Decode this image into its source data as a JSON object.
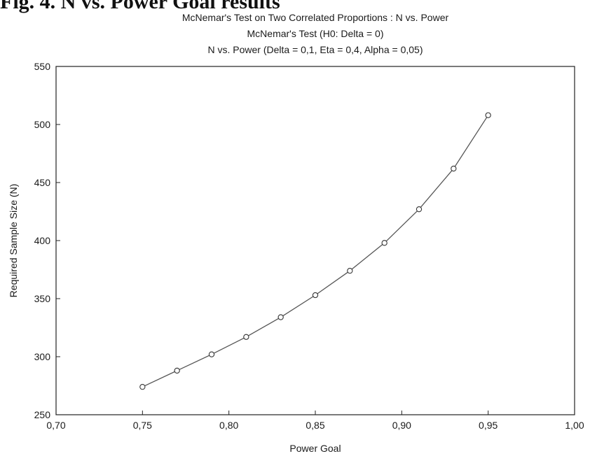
{
  "page": {
    "partial_heading": "Fig. 4. N vs. Power Goal results"
  },
  "chart_data": {
    "type": "line",
    "title": "McNemar's Test on Two Correlated Proportions : N vs. Power",
    "subtitle": "McNemar's Test (H0:  Delta = 0)",
    "subtitle2": "N vs. Power (Delta = 0,1,  Eta = 0,4, Alpha = 0,05)",
    "xlabel": "Power Goal",
    "ylabel": "Required Sample Size (N)",
    "xlim": [
      0.7,
      1.0
    ],
    "ylim": [
      250,
      550
    ],
    "x_ticks": [
      "0,70",
      "0,75",
      "0,80",
      "0,85",
      "0,90",
      "0,95",
      "1,00"
    ],
    "y_ticks": [
      "250",
      "300",
      "350",
      "400",
      "450",
      "500",
      "550"
    ],
    "grid": false,
    "line_color": "#555555",
    "marker": "open-circle",
    "x": [
      0.75,
      0.77,
      0.79,
      0.81,
      0.83,
      0.85,
      0.87,
      0.89,
      0.91,
      0.93,
      0.95
    ],
    "y": [
      274,
      288,
      302,
      317,
      334,
      353,
      374,
      398,
      427,
      462,
      508
    ]
  }
}
